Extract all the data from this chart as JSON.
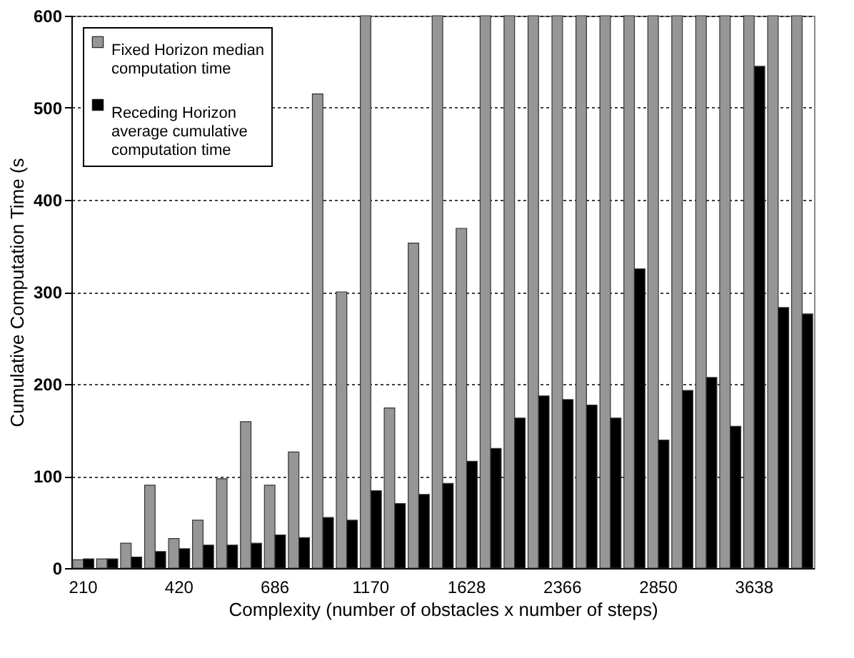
{
  "chart_data": {
    "type": "bar",
    "xlabel": "Complexity (number of obstacles x number of steps)",
    "ylabel": "Cumulative Computation Time (s",
    "categories": [
      "210",
      null,
      null,
      null,
      "420",
      null,
      null,
      null,
      "686",
      null,
      null,
      null,
      "1170",
      null,
      null,
      null,
      "1628",
      null,
      null,
      null,
      "2366",
      null,
      null,
      null,
      "2850",
      null,
      null,
      null,
      "3638",
      null,
      null
    ],
    "series": [
      {
        "name": "Fixed Horizon median computation time",
        "color": "#969696",
        "values": [
          9,
          10,
          27,
          90,
          32,
          52,
          97,
          159,
          90,
          126,
          515,
          300,
          600,
          174,
          353,
          600,
          369,
          600,
          600,
          600,
          600,
          600,
          600,
          600,
          600,
          600,
          600,
          600,
          600,
          600,
          600
        ]
      },
      {
        "name": "Receding Horizon average cumulative computation time",
        "color": "#000000",
        "values": [
          10,
          10,
          12,
          18,
          21,
          25,
          25,
          27,
          36,
          33,
          55,
          52,
          84,
          70,
          80,
          92,
          116,
          130,
          163,
          187,
          183,
          177,
          163,
          325,
          139,
          193,
          207,
          154,
          545,
          283,
          276
        ]
      }
    ],
    "ylim": [
      0,
      600
    ],
    "yticks": [
      0,
      100,
      200,
      300,
      400,
      500,
      600
    ],
    "grid": "y",
    "legend": "top left"
  }
}
